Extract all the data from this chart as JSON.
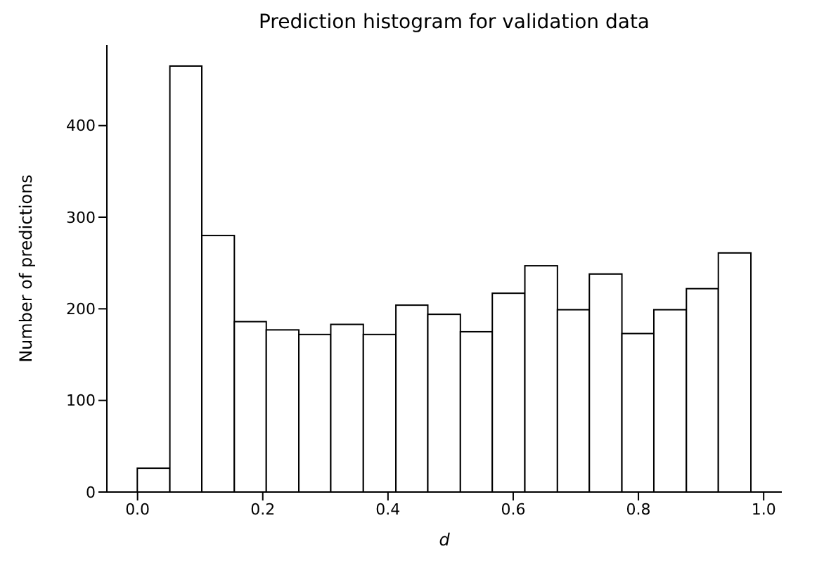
{
  "chart_data": {
    "type": "histogram",
    "title": "Prediction histogram for validation data",
    "xlabel": "d",
    "ylabel": "Number of predictions",
    "bins": [
      0,
      0.052,
      0.103,
      0.155,
      0.206,
      0.258,
      0.309,
      0.361,
      0.413,
      0.464,
      0.516,
      0.567,
      0.619,
      0.671,
      0.722,
      0.774,
      0.825,
      0.877,
      0.928,
      0.98
    ],
    "values": [
      26,
      465,
      280,
      186,
      177,
      172,
      183,
      172,
      204,
      194,
      175,
      217,
      247,
      199,
      238,
      173,
      199,
      222,
      261
    ],
    "color": "#ffffff",
    "xlim": [
      -0.049,
      1.029
    ],
    "xticks": [
      {
        "value": 0,
        "label": "0.0"
      },
      0.2,
      0.4,
      0.6,
      0.8,
      {
        "value": 1,
        "label": "1.0"
      }
    ],
    "ylim": [
      0,
      488
    ],
    "yticks": [
      0,
      100,
      200,
      300,
      400
    ],
    "grid": false
  }
}
